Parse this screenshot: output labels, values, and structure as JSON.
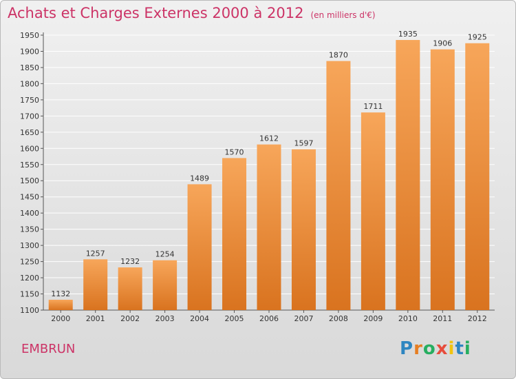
{
  "title": "Achats et Charges Externes 2000 à 2012",
  "unit": "(en milliers d'€)",
  "city": "EMBRUN",
  "logo": {
    "letters": [
      "P",
      "r",
      "o",
      "x",
      "i",
      "t",
      "i"
    ],
    "colors": [
      "#2e86c1",
      "#e67e22",
      "#27ae60",
      "#e74c3c",
      "#f1c40f",
      "#2e86c1",
      "#27ae60"
    ]
  },
  "colors": {
    "accent": "#cc3366",
    "bar_top": "#f7a65a",
    "bar_bottom": "#d9731f",
    "grid": "#ffffff"
  },
  "chart_data": {
    "type": "bar",
    "categories": [
      "2000",
      "2001",
      "2002",
      "2003",
      "2004",
      "2005",
      "2006",
      "2007",
      "2008",
      "2009",
      "2010",
      "2011",
      "2012"
    ],
    "values": [
      1132,
      1257,
      1232,
      1254,
      1489,
      1570,
      1612,
      1597,
      1870,
      1711,
      1935,
      1906,
      1925
    ],
    "title": "Achats et Charges Externes 2000 à 2012",
    "ylim": [
      1100,
      1950
    ],
    "yticks": [
      1100,
      1150,
      1200,
      1250,
      1300,
      1350,
      1400,
      1450,
      1500,
      1550,
      1600,
      1650,
      1700,
      1750,
      1800,
      1850,
      1900,
      1950
    ],
    "grid": true
  }
}
